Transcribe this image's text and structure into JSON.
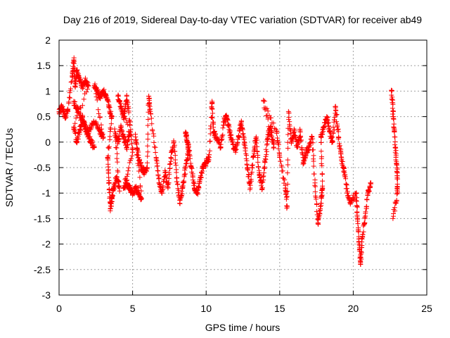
{
  "chart_data": {
    "type": "scatter",
    "title": "Day 216 of 2019, Sidereal Day-to-day VTEC variation (SDTVAR) for receiver ab49",
    "xlabel": "GPS time / hours",
    "ylabel": "SDTVAR / TECUs",
    "xlim": [
      0,
      25
    ],
    "ylim": [
      -3,
      2
    ],
    "xticks": [
      0,
      5,
      10,
      15,
      20,
      25
    ],
    "xtick_labels": [
      "0",
      "5",
      "10",
      "15",
      "20",
      "25"
    ],
    "yticks": [
      -3,
      -2.5,
      -2,
      -1.5,
      -1,
      -0.5,
      0,
      0.5,
      1,
      1.5,
      2
    ],
    "ytick_labels": [
      "-3",
      "-2.5",
      "-2",
      "-1.5",
      "-1",
      "-0.5",
      "0",
      "0.5",
      "1",
      "1.5",
      "2"
    ],
    "grid": true,
    "marker": "+",
    "color": "#ff0000",
    "series": [
      {
        "name": "SDTVAR",
        "approx_points": [
          [
            0.0,
            0.6
          ],
          [
            0.2,
            0.7
          ],
          [
            0.4,
            0.5
          ],
          [
            0.6,
            0.6
          ],
          [
            0.9,
            1.3
          ],
          [
            1.0,
            1.6
          ],
          [
            1.1,
            1.1
          ],
          [
            1.2,
            1.4
          ],
          [
            1.4,
            1.2
          ],
          [
            1.6,
            1.1
          ],
          [
            1.8,
            1.2
          ],
          [
            2.0,
            1.1
          ],
          [
            1.0,
            0.3
          ],
          [
            1.2,
            0.0
          ],
          [
            1.4,
            0.2
          ],
          [
            1.6,
            0.5
          ],
          [
            1.8,
            0.3
          ],
          [
            2.0,
            0.1
          ],
          [
            2.2,
            0.0
          ],
          [
            2.4,
            -0.1
          ],
          [
            1.0,
            0.8
          ],
          [
            1.3,
            0.6
          ],
          [
            1.6,
            0.4
          ],
          [
            1.9,
            0.2
          ],
          [
            2.2,
            0.3
          ],
          [
            2.5,
            0.4
          ],
          [
            2.8,
            0.2
          ],
          [
            3.0,
            0.1
          ],
          [
            2.4,
            1.1
          ],
          [
            2.6,
            1.0
          ],
          [
            2.8,
            0.9
          ],
          [
            3.0,
            1.0
          ],
          [
            3.2,
            0.9
          ],
          [
            3.4,
            0.7
          ],
          [
            3.6,
            0.5
          ],
          [
            3.3,
            -0.3
          ],
          [
            3.4,
            -0.8
          ],
          [
            3.5,
            -1.3
          ],
          [
            3.6,
            -1.1
          ],
          [
            3.7,
            -0.9
          ],
          [
            3.9,
            -0.7
          ],
          [
            4.1,
            -0.9
          ],
          [
            3.8,
            0.2
          ],
          [
            4.0,
            0.0
          ],
          [
            4.2,
            0.3
          ],
          [
            4.4,
            0.1
          ],
          [
            4.6,
            -0.1
          ],
          [
            4.8,
            0.2
          ],
          [
            4.0,
            0.9
          ],
          [
            4.2,
            0.7
          ],
          [
            4.4,
            0.5
          ],
          [
            4.6,
            0.9
          ],
          [
            4.8,
            0.4
          ],
          [
            5.0,
            -0.2
          ],
          [
            4.4,
            -0.9
          ],
          [
            4.6,
            -0.8
          ],
          [
            4.8,
            -0.9
          ],
          [
            5.0,
            -1.0
          ],
          [
            5.2,
            -0.9
          ],
          [
            5.4,
            -1.0
          ],
          [
            5.6,
            -1.1
          ],
          [
            5.2,
            0.1
          ],
          [
            5.4,
            -0.3
          ],
          [
            5.6,
            -0.5
          ],
          [
            5.8,
            -0.6
          ],
          [
            6.0,
            -0.5
          ],
          [
            6.1,
            0.9
          ],
          [
            6.2,
            0.6
          ],
          [
            6.6,
            -0.3
          ],
          [
            6.8,
            -0.8
          ],
          [
            7.0,
            -1.0
          ],
          [
            7.2,
            -0.6
          ],
          [
            7.4,
            -0.9
          ],
          [
            7.6,
            -0.3
          ],
          [
            7.8,
            0.0
          ],
          [
            8.0,
            -0.7
          ],
          [
            8.2,
            -1.2
          ],
          [
            8.4,
            -0.9
          ],
          [
            8.6,
            -0.5
          ],
          [
            8.8,
            -0.2
          ],
          [
            8.6,
            0.2
          ],
          [
            8.8,
            -0.1
          ],
          [
            9.0,
            -0.5
          ],
          [
            9.2,
            -0.9
          ],
          [
            9.4,
            -1.0
          ],
          [
            9.6,
            -0.7
          ],
          [
            9.8,
            -0.5
          ],
          [
            10.0,
            -0.4
          ],
          [
            10.2,
            -0.3
          ],
          [
            10.4,
            0.8
          ],
          [
            10.5,
            0.2
          ],
          [
            10.7,
            0.1
          ],
          [
            11.0,
            -0.1
          ],
          [
            11.2,
            0.4
          ],
          [
            11.4,
            0.5
          ],
          [
            11.6,
            0.2
          ],
          [
            11.8,
            0.0
          ],
          [
            12.0,
            -0.2
          ],
          [
            12.2,
            0.1
          ],
          [
            12.4,
            0.4
          ],
          [
            12.6,
            0.0
          ],
          [
            12.8,
            -0.5
          ],
          [
            13.0,
            -0.9
          ],
          [
            13.2,
            -0.3
          ],
          [
            13.4,
            0.1
          ],
          [
            13.6,
            -0.6
          ],
          [
            13.8,
            -0.9
          ],
          [
            14.0,
            -0.4
          ],
          [
            14.2,
            0.1
          ],
          [
            14.4,
            0.3
          ],
          [
            14.6,
            -0.1
          ],
          [
            13.9,
            0.8
          ],
          [
            14.8,
            0.2
          ],
          [
            15.0,
            -0.3
          ],
          [
            15.4,
            -0.9
          ],
          [
            15.5,
            -1.25
          ],
          [
            15.6,
            0.6
          ],
          [
            15.8,
            0.0
          ],
          [
            16.0,
            0.2
          ],
          [
            16.2,
            -0.1
          ],
          [
            16.4,
            0.2
          ],
          [
            16.6,
            -0.4
          ],
          [
            16.8,
            -0.2
          ],
          [
            17.0,
            -0.1
          ],
          [
            17.2,
            0.1
          ],
          [
            17.4,
            -0.8
          ],
          [
            17.6,
            -1.6
          ],
          [
            17.8,
            -1.2
          ],
          [
            17.9,
            -0.9
          ],
          [
            17.8,
            0.1
          ],
          [
            18.0,
            0.3
          ],
          [
            18.2,
            0.5
          ],
          [
            18.4,
            0.2
          ],
          [
            18.6,
            0.0
          ],
          [
            18.8,
            0.7
          ],
          [
            19.0,
            0.1
          ],
          [
            19.2,
            -0.3
          ],
          [
            19.4,
            -0.6
          ],
          [
            19.6,
            -1.0
          ],
          [
            19.8,
            -1.2
          ],
          [
            20.2,
            -1.0
          ],
          [
            20.3,
            -1.5
          ],
          [
            20.4,
            -2.0
          ],
          [
            20.5,
            -2.4
          ],
          [
            20.6,
            -1.9
          ],
          [
            20.8,
            -1.5
          ],
          [
            21.0,
            -1.0
          ],
          [
            21.2,
            -0.8
          ],
          [
            22.6,
            1.0
          ],
          [
            22.7,
            0.6
          ],
          [
            22.8,
            0.2
          ],
          [
            22.9,
            -0.3
          ],
          [
            23.0,
            -0.6
          ],
          [
            23.0,
            -1.0
          ],
          [
            22.7,
            -1.5
          ]
        ]
      }
    ]
  }
}
